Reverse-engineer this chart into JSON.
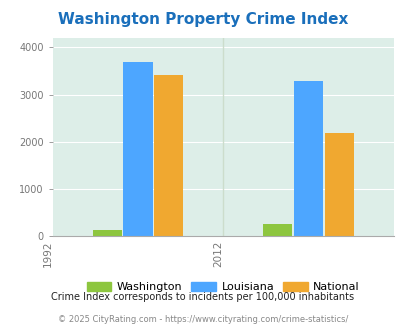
{
  "title": "Washington Property Crime Index",
  "title_color": "#1a6fbb",
  "years": [
    "1992",
    "2012"
  ],
  "categories": [
    "Washington",
    "Louisiana",
    "National"
  ],
  "values": {
    "1992": [
      130,
      3700,
      3420
    ],
    "2012": [
      250,
      3280,
      2180
    ]
  },
  "bar_colors": [
    "#8dc63f",
    "#4da6ff",
    "#f0a830"
  ],
  "background_color": "#ffffff",
  "plot_bg_color": "#ddeee8",
  "ylabel_values": [
    0,
    1000,
    2000,
    3000,
    4000
  ],
  "ylim": [
    0,
    4200
  ],
  "legend_labels": [
    "Washington",
    "Louisiana",
    "National"
  ],
  "footnote1": "Crime Index corresponds to incidents per 100,000 inhabitants",
  "footnote2": "© 2025 CityRating.com - https://www.cityrating.com/crime-statistics/",
  "footnote1_color": "#222222",
  "footnote2_color": "#888888"
}
